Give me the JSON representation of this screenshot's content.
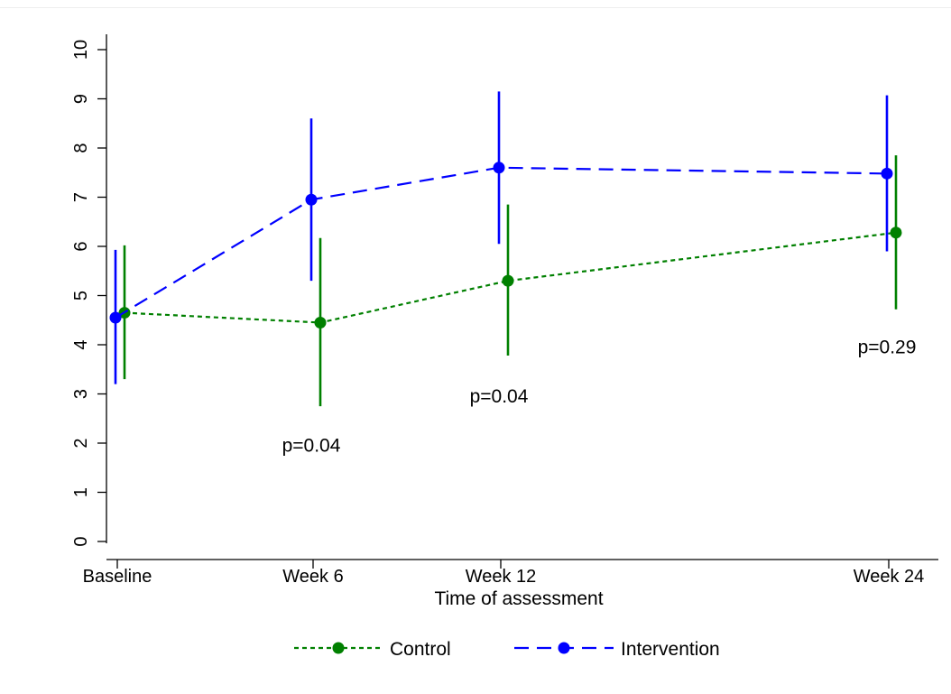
{
  "chart_data": {
    "type": "line",
    "title": "",
    "xlabel": "Time of assessment",
    "ylabel": "",
    "x_categories": [
      "Baseline",
      "Week 6",
      "Week 12",
      "Week 24"
    ],
    "x_weeks": [
      0,
      6,
      12,
      24
    ],
    "ylim": [
      0,
      10
    ],
    "yticks": [
      "0",
      "1",
      "2",
      "3",
      "4",
      "5",
      "6",
      "7",
      "8",
      "9",
      "10"
    ],
    "grid": false,
    "legend_position": "bottom",
    "series": [
      {
        "name": "Control",
        "color": "#008000",
        "line_style": "dotted",
        "values": [
          4.65,
          4.45,
          5.3,
          6.28
        ],
        "ci_low": [
          3.3,
          2.75,
          3.78,
          4.72
        ],
        "ci_high": [
          6.02,
          6.17,
          6.85,
          7.85
        ]
      },
      {
        "name": "Intervention",
        "color": "#0000ff",
        "line_style": "dashed",
        "values": [
          4.55,
          6.95,
          7.6,
          7.48
        ],
        "ci_low": [
          3.2,
          5.3,
          6.05,
          5.9
        ],
        "ci_high": [
          5.93,
          8.6,
          9.15,
          9.07
        ]
      }
    ],
    "annotations": [
      {
        "text": "p=0.04",
        "x_week": 6,
        "y": 1.95
      },
      {
        "text": "p=0.04",
        "x_week": 12,
        "y": 2.95
      },
      {
        "text": "p=0.29",
        "x_week": 24,
        "y": 3.95
      }
    ]
  }
}
